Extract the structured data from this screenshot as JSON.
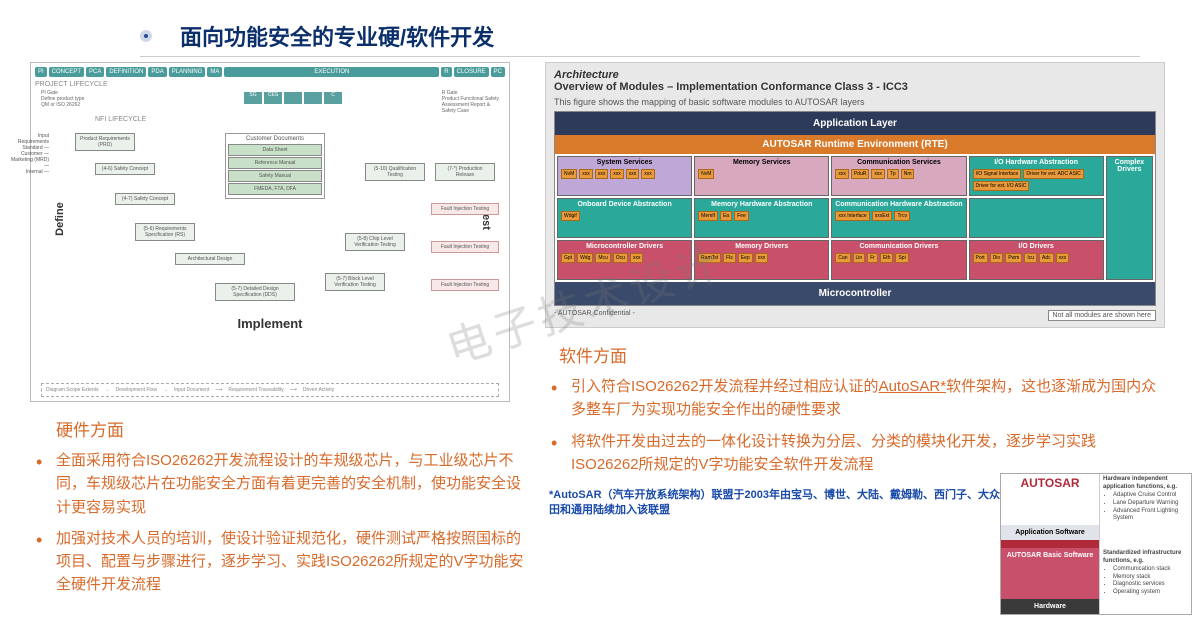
{
  "title": "面向功能安全的专业硬/软件开发",
  "watermark": "电子技术设计",
  "vmodel": {
    "lifecycle_label": "PROJECT LIFECYCLE",
    "phases": [
      "PI",
      "CONCEPT",
      "PCA",
      "DEFINITION",
      "PDA",
      "PLANNING",
      "MA",
      "EXECUTION",
      "R",
      "CLOSURE",
      "PC"
    ],
    "nfi_label": "NFI LIFECYCLE",
    "pi_gate": "PI Gate\nDefine product type\nQM or ISO 26262",
    "r_gate": "R Gate\nProduct Functional Safety\nAssessment Report &\nSafety Case",
    "nfi": [
      "SG",
      "CES",
      "",
      "",
      "C"
    ],
    "input_req": "Input Requirements\nStandard —\nCustomer —\nMarketing (MRD) —\nInternal —",
    "define": "Define",
    "implement": "Implement",
    "test": "Test",
    "docs_header": "Customer Documents",
    "docs": [
      "Data Sheet",
      "Reference Manual",
      "Safety Manual",
      "FMEDA, FTA, DFA"
    ],
    "left_boxes": [
      "Product Requirements (PRD)",
      "(4-6) Safety Concept",
      "(4-7) Safety Concept",
      "(5-6) Requirements Specification (RS)",
      "Architectural Design",
      "(5-7) Detailed Design Specification (DDS)"
    ],
    "right_boxes": [
      "(5-10) Qualification Testing",
      "(7-*) Production Release",
      "(5-8) Chip Level Verification Testing",
      "(5-7) Block Level Verification Testing"
    ],
    "red_tests": [
      "Fault Injection Testing",
      "Fault Injection Testing",
      "Fault Injection Testing"
    ],
    "legend": [
      "Diagram Scope Extents",
      "Development Flow",
      "Input Document",
      "Requirement Traceability",
      "Driven Activity"
    ]
  },
  "autosar": {
    "t1": "Architecture",
    "t2": "Overview of Modules – Implementation Conformance Class 3 - ICC3",
    "sub": "This figure shows the mapping of basic software modules to AUTOSAR layers",
    "app": "Application Layer",
    "rte": "AUTOSAR Runtime Environment (RTE)",
    "cells": {
      "r1c1": "System Services",
      "r1c2": "Memory Services",
      "r1c3": "Communication Services",
      "r1c4": "I/O Hardware Abstraction",
      "r1c5": "Complex Drivers",
      "r2c1": "Onboard Device Abstraction",
      "r2c2": "Memory Hardware Abstraction",
      "r2c3": "Communication Hardware Abstraction",
      "r3c1": "Microcontroller Drivers",
      "r3c2": "Memory Drivers",
      "r3c3": "Communication Drivers",
      "r3c4": "I/O Drivers"
    },
    "mods": {
      "r1c1": [
        "NvM",
        "xxx",
        "xxx",
        "xxx",
        "xxx",
        "xxx"
      ],
      "r1c2": [
        "NvM"
      ],
      "r1c3": [
        "xxx",
        "PduR",
        "xxx",
        "Tp",
        "Nm"
      ],
      "r1c4": [
        "I/O Signal Interface",
        "Driver for ext. ADC ASIC",
        "Driver for ext. I/O ASIC"
      ],
      "r2c1": [
        "Wdgif"
      ],
      "r2c2": [
        "MemIf",
        "Ea",
        "Fee"
      ],
      "r2c3": [
        "xxx Interface",
        "xxxExt",
        "Trcv"
      ],
      "r3c1": [
        "Gpt",
        "Wdg",
        "Mcu",
        "Ocu",
        "xxx"
      ],
      "r3c2": [
        "RamTst",
        "Fls",
        "Eep",
        "xxx"
      ],
      "r3c3": [
        "Can",
        "Lin",
        "Fr",
        "Eth",
        "Spi"
      ],
      "r3c4": [
        "Port",
        "Dio",
        "Pwm",
        "Icu",
        "Adc",
        "xxx"
      ]
    },
    "mcu": "Microcontroller",
    "conf": "- AUTOSAR Confidential -",
    "note": "Not all modules are shown here"
  },
  "hardware": {
    "head": "硬件方面",
    "items": [
      "全面采用符合ISO26262开发流程设计的车规级芯片，与工业级芯片不同，车规级芯片在功能安全方面有着更完善的安全机制，使功能安全设计更容易实现",
      "加强对技术人员的培训，使设计验证规范化，硬件测试严格按照国标的项目、配置与步骤进行，逐步学习、实践ISO26262所规定的V字功能安全硬件开发流程"
    ]
  },
  "software": {
    "head": "软件方面",
    "items": [
      "引入符合ISO26262开发流程并经过相应认证的AutoSAR*软件架构，这也逐渐成为国内众多整车厂为实现功能安全作出的硬性要求",
      "将软件开发由过去的一体化设计转换为分层、分类的模块化开发，逐步学习实践ISO26262所规定的V字功能安全软件开发流程"
    ],
    "footnote": "*AutoSAR（汽车开放系统架构）联盟于2003年由宝马、博世、大陆、戴姆勒、西门子、大众联合成立，之后福特、雪铁龙、丰田和通用陆续加入该联盟"
  },
  "mini": {
    "logo": "AUTOSAR",
    "app": "Application Software",
    "bsw": "AUTOSAR Basic Software",
    "hw": "Hardware",
    "right1_head": "Hardware independent application functions, e.g.",
    "right1": [
      "Adaptive Cruise Control",
      "Lane Departure Warning",
      "Advanced Front Lighting System"
    ],
    "right2_head": "Standardized infrastructure functions, e.g.",
    "right2": [
      "Communication stack",
      "Memory stack",
      "Diagnostic services",
      "Operating system"
    ]
  },
  "colors": {
    "accent": "#d86a2a",
    "title": "#0b2f6b",
    "app_layer": "#2d3a5a",
    "rte_layer": "#d87a2a",
    "svc": "#bfa8d8",
    "mem": "#d8a8bf",
    "io": "#2aa89a",
    "drv": "#c8506a",
    "mod": "#e89a3a"
  }
}
